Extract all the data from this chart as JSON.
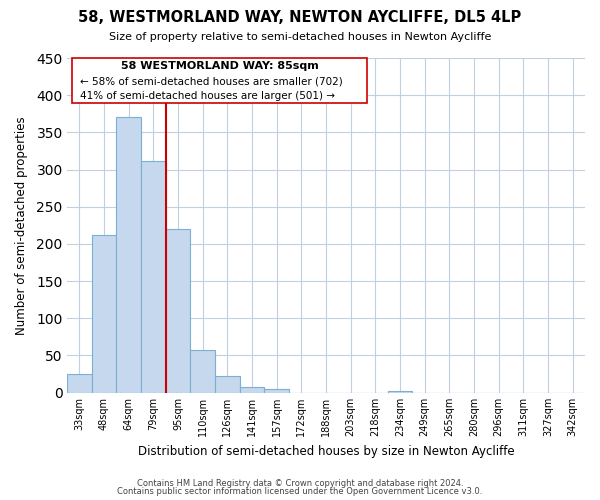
{
  "title": "58, WESTMORLAND WAY, NEWTON AYCLIFFE, DL5 4LP",
  "subtitle": "Size of property relative to semi-detached houses in Newton Aycliffe",
  "xlabel": "Distribution of semi-detached houses by size in Newton Aycliffe",
  "ylabel": "Number of semi-detached properties",
  "bin_labels": [
    "33sqm",
    "48sqm",
    "64sqm",
    "79sqm",
    "95sqm",
    "110sqm",
    "126sqm",
    "141sqm",
    "157sqm",
    "172sqm",
    "188sqm",
    "203sqm",
    "218sqm",
    "234sqm",
    "249sqm",
    "265sqm",
    "280sqm",
    "296sqm",
    "311sqm",
    "327sqm",
    "342sqm"
  ],
  "bar_values": [
    25,
    212,
    370,
    311,
    220,
    57,
    22,
    8,
    5,
    0,
    0,
    0,
    0,
    2,
    0,
    0,
    0,
    0,
    0,
    0,
    0
  ],
  "bar_color": "#c5d8ed",
  "bar_edge_color": "#7bafd4",
  "vline_color": "#cc0000",
  "ylim": [
    0,
    450
  ],
  "yticks": [
    0,
    50,
    100,
    150,
    200,
    250,
    300,
    350,
    400,
    450
  ],
  "annotation_title": "58 WESTMORLAND WAY: 85sqm",
  "annotation_line1": "← 58% of semi-detached houses are smaller (702)",
  "annotation_line2": "41% of semi-detached houses are larger (501) →",
  "footer1": "Contains HM Land Registry data © Crown copyright and database right 2024.",
  "footer2": "Contains public sector information licensed under the Open Government Licence v3.0.",
  "background_color": "#ffffff",
  "grid_color": "#c0d0e0"
}
